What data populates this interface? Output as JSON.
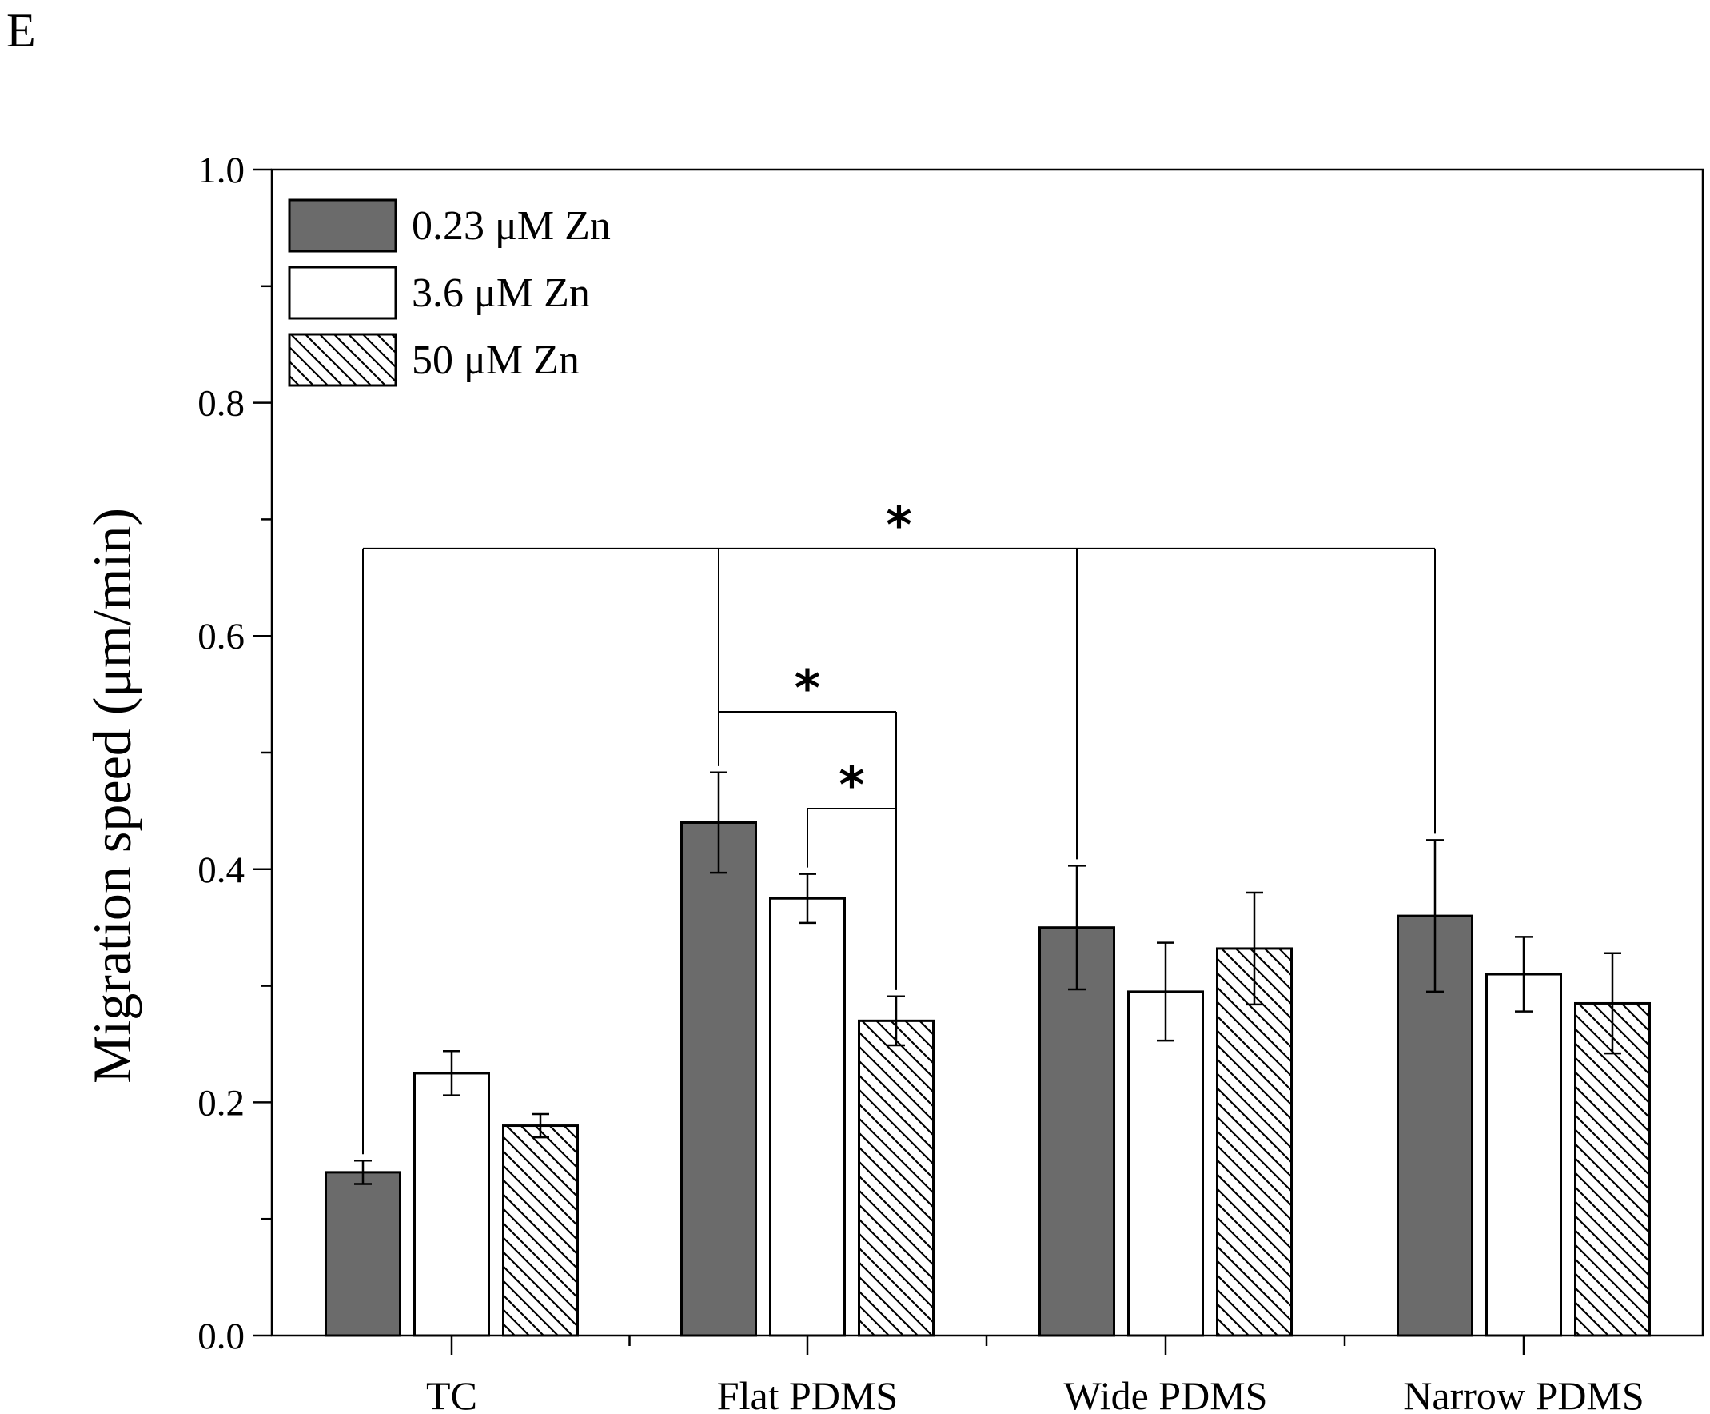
{
  "panel_label": "E",
  "chart_data": {
    "type": "bar",
    "title": "",
    "xlabel": "",
    "ylabel": "Migration speed (μm/min)",
    "ylim": [
      0,
      1.0
    ],
    "yticks": [
      0.0,
      0.2,
      0.4,
      0.6,
      0.8,
      1.0
    ],
    "ytick_labels": [
      "0.0",
      "0.2",
      "0.4",
      "0.6",
      "0.8",
      "1.0"
    ],
    "categories": [
      "TC",
      "Flat PDMS",
      "Wide PDMS",
      "Narrow PDMS"
    ],
    "series": [
      {
        "name": "0.23 μM Zn",
        "fill": "solid-gray",
        "color": "#6b6b6b",
        "values": [
          0.14,
          0.44,
          0.35,
          0.36
        ],
        "errors": [
          0.01,
          0.043,
          0.053,
          0.065
        ]
      },
      {
        "name": "3.6 μM Zn",
        "fill": "white",
        "color": "#ffffff",
        "values": [
          0.225,
          0.375,
          0.295,
          0.31
        ],
        "errors": [
          0.019,
          0.021,
          0.042,
          0.032
        ]
      },
      {
        "name": "50 μM Zn",
        "fill": "hatched",
        "color": "#ffffff",
        "values": [
          0.18,
          0.27,
          0.332,
          0.285
        ],
        "errors": [
          0.01,
          0.021,
          0.048,
          0.043
        ]
      }
    ],
    "legend_position": "top-left",
    "significance": [
      {
        "label": "*",
        "description": "0.23 μM Zn across TC, Flat PDMS, Wide PDMS, Narrow PDMS",
        "links": [
          [
            0,
            0
          ],
          [
            1,
            0
          ],
          [
            2,
            0
          ],
          [
            3,
            0
          ]
        ],
        "bracket_y": 0.675
      },
      {
        "label": "*",
        "description": "Flat PDMS 0.23 μM Zn vs 50 μM Zn",
        "links": [
          [
            1,
            0
          ],
          [
            1,
            2
          ]
        ],
        "bracket_y": 0.535
      },
      {
        "label": "*",
        "description": "Flat PDMS 3.6 μM Zn vs 50 μM Zn",
        "links": [
          [
            1,
            1
          ],
          [
            1,
            2
          ]
        ],
        "bracket_y": 0.452
      }
    ]
  }
}
